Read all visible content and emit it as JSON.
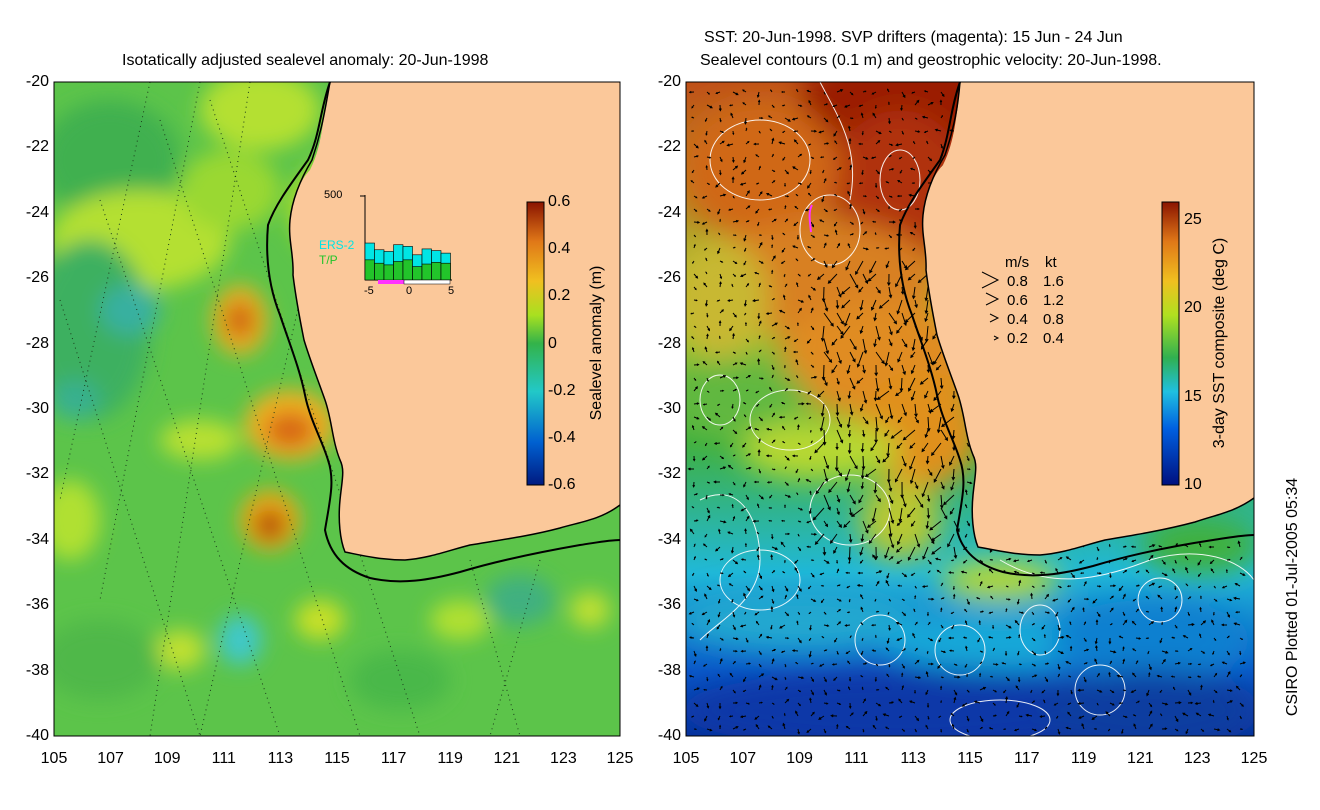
{
  "left_panel": {
    "title": "Isotatically adjusted sealevel anomaly: 20-Jun-1998",
    "lon_ticks": [
      "105",
      "107",
      "109",
      "111",
      "113",
      "115",
      "117",
      "119",
      "121",
      "123",
      "125"
    ],
    "lat_ticks": [
      "-20",
      "-22",
      "-24",
      "-26",
      "-28",
      "-30",
      "-32",
      "-34",
      "-36",
      "-38",
      "-40"
    ],
    "colorbar": {
      "label": "Sealevel anomaly (m)",
      "ticks": [
        "0.6",
        "0.4",
        "0.2",
        "0",
        "-0.2",
        "-0.4",
        "-0.6"
      ],
      "range": [
        -0.6,
        0.6
      ]
    },
    "inset": {
      "ymax_label": "500",
      "x_ticks": [
        "-5",
        "0",
        "5"
      ],
      "legend": [
        {
          "label": "ERS-2",
          "color": "#00e5e5"
        },
        {
          "label": "T/P",
          "color": "#22c42a"
        }
      ],
      "highlight_color": "#ff33ff",
      "bars": [
        {
          "ers": 220,
          "tp": 120
        },
        {
          "ers": 180,
          "tp": 100
        },
        {
          "ers": 170,
          "tp": 90
        },
        {
          "ers": 210,
          "tp": 110
        },
        {
          "ers": 200,
          "tp": 120
        },
        {
          "ers": 150,
          "tp": 80
        },
        {
          "ers": 185,
          "tp": 95
        },
        {
          "ers": 175,
          "tp": 105
        },
        {
          "ers": 160,
          "tp": 100
        }
      ]
    }
  },
  "right_panel": {
    "title_line1": "SST: 20-Jun-1998. SVP drifters (magenta): 15 Jun - 24 Jun",
    "title_line2": "Sealevel contours (0.1 m) and geostrophic velocity: 20-Jun-1998.",
    "lon_ticks": [
      "105",
      "107",
      "109",
      "111",
      "113",
      "115",
      "117",
      "119",
      "121",
      "123",
      "125"
    ],
    "lat_ticks": [
      "-20",
      "-22",
      "-24",
      "-26",
      "-28",
      "-30",
      "-32",
      "-34",
      "-36",
      "-38",
      "-40"
    ],
    "colorbar": {
      "label": "3-day SST composite (deg C)",
      "ticks": [
        "25",
        "20",
        "15",
        "10"
      ],
      "range": [
        10,
        26
      ]
    },
    "speed_legend": {
      "header_ms": "m/s",
      "header_kt": "kt",
      "rows": [
        {
          "ms": "0.8",
          "kt": "1.6"
        },
        {
          "ms": "0.6",
          "kt": "1.2"
        },
        {
          "ms": "0.4",
          "kt": "0.8"
        },
        {
          "ms": "0.2",
          "kt": "0.4"
        }
      ]
    }
  },
  "credit": "CSIRO Plotted 01-Jul-2005 05:34",
  "colors": {
    "land": "#fbc89a",
    "coast": "#000000",
    "drifter": "#ff33ff"
  }
}
